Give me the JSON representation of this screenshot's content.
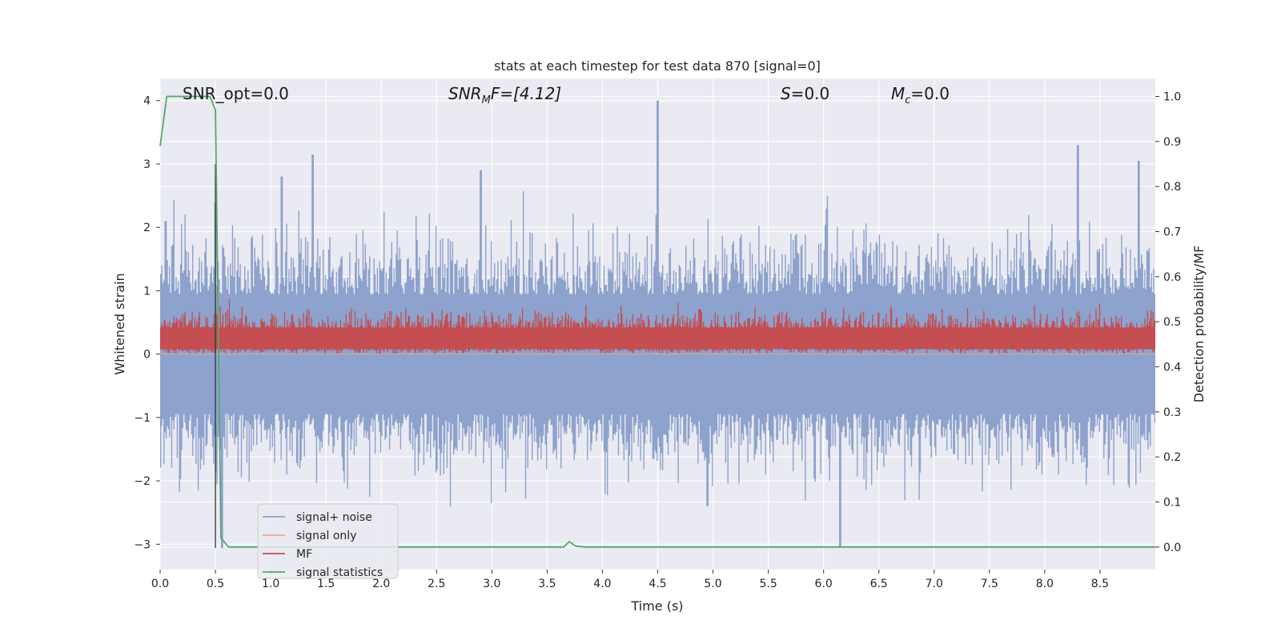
{
  "chart_data": {
    "type": "line",
    "title": "stats at each timestep for test data 870 [signal=0]",
    "xlabel": "Time (s)",
    "ylabel": "Whitened strain",
    "y2label": "Detection probability/MF",
    "xlim": [
      0,
      9.0
    ],
    "ylim": [
      -3.4,
      4.35
    ],
    "y2lim": [
      -0.05,
      1.04
    ],
    "x_ticks": [
      "0.0",
      "0.5",
      "1.0",
      "1.5",
      "2.0",
      "2.5",
      "3.0",
      "3.5",
      "4.0",
      "4.5",
      "5.0",
      "5.5",
      "6.0",
      "6.5",
      "7.0",
      "7.5",
      "8.0",
      "8.5"
    ],
    "y_ticks": [
      "4",
      "3",
      "2",
      "1",
      "0",
      "−1",
      "−2",
      "−3"
    ],
    "y2_ticks": [
      "1.0",
      "0.9",
      "0.8",
      "0.7",
      "0.6",
      "0.5",
      "0.4",
      "0.3",
      "0.2",
      "0.1",
      "0.0"
    ],
    "grid": true,
    "legend_position": "lower-left",
    "annotations": {
      "snr_opt": "SNR_opt=0.0",
      "snr_mf_main": "SNR",
      "snr_mf_sub": "M",
      "snr_mf_rest": "F=[4.12]",
      "s": "S",
      "s_rest": "=0.0",
      "mc_main": "M",
      "mc_sub": "c",
      "mc_rest": "=0.0"
    },
    "series": [
      {
        "name": "signal+ noise",
        "color": "#8da2cc",
        "axis": "left",
        "description": "noise-like whitened strain, roughly symmetric with peaks between about -2.9 and 4.0",
        "peaks": [
          [
            0.05,
            2.1
          ],
          [
            0.5,
            2.4
          ],
          [
            0.56,
            -3.06
          ],
          [
            1.1,
            2.8
          ],
          [
            1.38,
            3.15
          ],
          [
            2.9,
            2.9
          ],
          [
            4.5,
            4.0
          ],
          [
            4.95,
            -2.4
          ],
          [
            6.15,
            -3.05
          ],
          [
            8.3,
            3.3
          ],
          [
            8.85,
            3.05
          ]
        ]
      },
      {
        "name": "signal only",
        "color": "#e8a98d",
        "axis": "left",
        "points": [
          [
            0.0,
            0.0
          ],
          [
            9.0,
            0.0
          ]
        ]
      },
      {
        "name": "MF",
        "color": "#c44e52",
        "axis": "left",
        "description": "matched filter output, fluctuating between about 0 and 1.0"
      },
      {
        "name": "signal statistics",
        "color": "#55a868",
        "axis": "right",
        "points": [
          [
            0.0,
            0.89
          ],
          [
            0.06,
            1.0
          ],
          [
            0.15,
            1.0
          ],
          [
            0.3,
            1.0
          ],
          [
            0.45,
            1.0
          ],
          [
            0.5,
            0.97
          ],
          [
            0.52,
            0.6
          ],
          [
            0.55,
            0.02
          ],
          [
            0.62,
            0.0
          ],
          [
            3.6,
            0.0
          ],
          [
            3.65,
            0.0
          ],
          [
            3.7,
            0.012
          ],
          [
            3.76,
            0.002
          ],
          [
            3.85,
            0.0
          ],
          [
            9.0,
            0.0
          ]
        ]
      }
    ],
    "vertical_marker": {
      "x": 0.5,
      "color": "#333333"
    }
  }
}
